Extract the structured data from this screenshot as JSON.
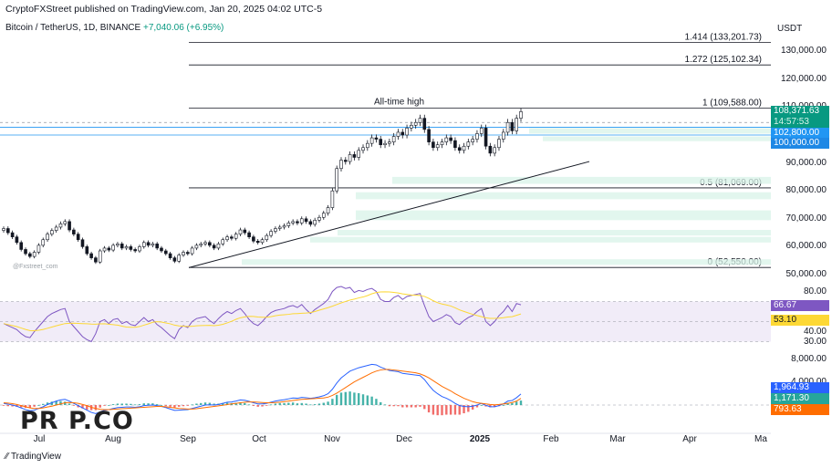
{
  "header": {
    "publisher": "CryptoFXStreet published on TradingView.com, Jan 20, 2025 04:02 UTC-5",
    "symbol": "Bitcoin / TetherUS, 1D, BINANCE",
    "change": "+7,040.06 (+6.95%)"
  },
  "currency_label": "USDT",
  "watermark": "PR P.CO",
  "small_watermark": "@Fxstreet_com",
  "tv_logo": "TradingView",
  "badges": {
    "last_price": "108,371.63",
    "countdown": "14:57:53",
    "level_a": "102,800.00",
    "level_b": "100,000.00",
    "rsi": "66.67",
    "rsi_ma": "53.10",
    "macd_scale": "1,964.93",
    "macd_signal": "1,171.30",
    "macd_hist": "793.63"
  },
  "colors": {
    "up": "#089981",
    "down": "#f23645",
    "fib_line": "#131722",
    "level_line": "#2196f3",
    "rsi_line": "#7e57c2",
    "rsi_ma": "#fdd835",
    "macd_line": "#2962ff",
    "signal_line": "#ff6d00",
    "zone": "#d8f3e8"
  },
  "chart_data": [
    {
      "type": "candlestick",
      "title": "Bitcoin / TetherUS, 1D, BINANCE",
      "y_axis_ticks": [
        "130,000.00",
        "120,000.00",
        "110,000.00",
        "100,000.00",
        "90,000.00",
        "80,000.00",
        "70,000.00",
        "60,000.00",
        "50,000.00"
      ],
      "ylim": [
        48500,
        136000
      ],
      "x_ticks": [
        "Jul",
        "Aug",
        "Sep",
        "Oct",
        "Nov",
        "Dec",
        "2025",
        "Feb",
        "Mar",
        "Apr",
        "Ma"
      ],
      "closes": [
        66500,
        65000,
        63500,
        61500,
        59000,
        57500,
        56500,
        58000,
        60500,
        62500,
        64500,
        65800,
        67000,
        68200,
        69000,
        66000,
        64500,
        62500,
        60000,
        57500,
        56000,
        54500,
        58500,
        59500,
        58800,
        60500,
        61000,
        59500,
        60000,
        59000,
        58500,
        60000,
        61500,
        60500,
        61000,
        59500,
        58500,
        57500,
        56000,
        54800,
        57000,
        58000,
        57500,
        59500,
        60500,
        61000,
        61500,
        60500,
        59500,
        61000,
        62500,
        63500,
        63000,
        64500,
        66000,
        65000,
        63500,
        62000,
        61500,
        62500,
        64000,
        65500,
        66500,
        67000,
        67500,
        68500,
        69000,
        68500,
        70000,
        69000,
        68000,
        69500,
        70500,
        72000,
        74000,
        80000,
        88000,
        91000,
        90500,
        93000,
        92000,
        94500,
        95500,
        97000,
        99000,
        98500,
        96500,
        97000,
        97500,
        99500,
        101000,
        100000,
        102500,
        103500,
        104500,
        106000,
        102000,
        97500,
        95500,
        96500,
        97500,
        99000,
        98000,
        95500,
        94500,
        96000,
        97500,
        98500,
        100500,
        102500,
        96000,
        93500,
        95500,
        98500,
        101000,
        104500,
        101500,
        106000,
        108371
      ],
      "fib_levels": [
        {
          "label": "1.414 (133,201.73)",
          "value": 133201.73
        },
        {
          "label": "1.272 (125,102.34)",
          "value": 125102.34
        },
        {
          "label": "1 (109,588.00)",
          "value": 109588
        },
        {
          "label": "0.5 (81,069.00)",
          "value": 81069
        },
        {
          "label": "0 (52,550.00)",
          "value": 52550
        }
      ],
      "annotations": [
        "All-time high"
      ],
      "horizontal_levels": [
        102800,
        100000
      ],
      "trendline": {
        "from": [
          52500,
          "Sep"
        ],
        "to": [
          90500,
          "Feb"
        ]
      }
    },
    {
      "type": "line",
      "title": "RSI",
      "y_axis_ticks": [
        "80.00",
        "40.00",
        "30.00"
      ],
      "ylim": [
        25,
        85
      ],
      "overbought": 70,
      "oversold": 30,
      "series": [
        {
          "values": [
            48,
            46,
            44,
            42,
            38,
            35,
            34,
            40,
            45,
            50,
            55,
            58,
            60,
            62,
            63,
            50,
            45,
            40,
            35,
            32,
            30,
            38,
            50,
            52,
            48,
            52,
            53,
            48,
            50,
            47,
            46,
            50,
            54,
            50,
            52,
            47,
            44,
            40,
            36,
            33,
            42,
            46,
            44,
            50,
            53,
            54,
            55,
            51,
            48,
            53,
            57,
            60,
            58,
            61,
            63,
            58,
            52,
            48,
            46,
            50,
            55,
            59,
            61,
            62,
            63,
            65,
            66,
            64,
            67,
            62,
            58,
            62,
            65,
            68,
            72,
            80,
            84,
            85,
            83,
            84,
            79,
            81,
            80,
            82,
            83,
            80,
            72,
            70,
            70,
            74,
            76,
            72,
            75,
            76,
            77,
            78,
            66,
            55,
            50,
            52,
            54,
            57,
            55,
            49,
            47,
            51,
            54,
            56,
            60,
            63,
            50,
            46,
            50,
            56,
            60,
            66,
            60,
            68,
            66.67
          ]
        }
      ]
    },
    {
      "type": "line",
      "title": "MACD",
      "y_axis_ticks": [
        "8,000.00",
        "4,000.00"
      ],
      "series": [
        {
          "values": [
            300,
            150,
            0,
            -200,
            -500,
            -800,
            -1000,
            -900,
            -600,
            -300,
            100,
            400,
            700,
            900,
            1000,
            700,
            300,
            -100,
            -500,
            -900,
            -1300,
            -1500,
            -1200,
            -900,
            -800,
            -600,
            -450,
            -400,
            -350,
            -350,
            -400,
            -300,
            -100,
            -50,
            0,
            -100,
            -250,
            -450,
            -700,
            -950,
            -900,
            -850,
            -800,
            -600,
            -400,
            -200,
            0,
            50,
            0,
            100,
            300,
            500,
            550,
            700,
            900,
            850,
            650,
            400,
            200,
            200,
            300,
            500,
            700,
            850,
            950,
            1100,
            1250,
            1200,
            1350,
            1300,
            1200,
            1300,
            1450,
            1650,
            2000,
            2800,
            3900,
            4800,
            5400,
            6000,
            6300,
            6600,
            6800,
            7000,
            7200,
            7100,
            6700,
            6400,
            6100,
            6000,
            5900,
            5600,
            5500,
            5400,
            5300,
            5200,
            4500,
            3500,
            2600,
            2000,
            1500,
            1200,
            800,
            300,
            -100,
            -250,
            -300,
            -200,
            0,
            300,
            -50,
            -300,
            -300,
            -100,
            200,
            700,
            800,
            1300,
            1964.93
          ]
        },
        {
          "values": [
            400,
            350,
            250,
            100,
            -100,
            -300,
            -500,
            -600,
            -600,
            -500,
            -350,
            -200,
            0,
            200,
            400,
            450,
            400,
            300,
            100,
            -100,
            -400,
            -600,
            -750,
            -800,
            -800,
            -750,
            -700,
            -650,
            -600,
            -550,
            -500,
            -450,
            -400,
            -350,
            -300,
            -250,
            -250,
            -300,
            -400,
            -500,
            -600,
            -650,
            -700,
            -700,
            -650,
            -550,
            -450,
            -350,
            -250,
            -150,
            -50,
            100,
            200,
            300,
            400,
            500,
            550,
            550,
            500,
            450,
            400,
            400,
            450,
            500,
            600,
            700,
            800,
            900,
            1000,
            1050,
            1100,
            1150,
            1200,
            1250,
            1400,
            1700,
            2100,
            2600,
            3100,
            3600,
            4100,
            4500,
            4900,
            5300,
            5700,
            6000,
            6200,
            6300,
            6300,
            6200,
            6100,
            6000,
            5900,
            5800,
            5700,
            5500,
            5200,
            4800,
            4300,
            3800,
            3300,
            2900,
            2500,
            2000,
            1600,
            1200,
            900,
            600,
            400,
            300,
            200,
            100,
            50,
            100,
            200,
            300,
            450,
            700,
            1171.3
          ]
        },
        {
          "values": [
            -100,
            -200,
            -250,
            -300,
            -400,
            -500,
            -500,
            -300,
            0,
            200,
            450,
            600,
            700,
            700,
            600,
            250,
            -100,
            -400,
            -600,
            -800,
            -900,
            -900,
            -450,
            -100,
            0,
            150,
            250,
            250,
            250,
            200,
            100,
            150,
            300,
            300,
            300,
            150,
            0,
            -150,
            -300,
            -450,
            -300,
            -200,
            -100,
            100,
            250,
            350,
            450,
            400,
            250,
            250,
            350,
            400,
            350,
            400,
            500,
            350,
            100,
            -150,
            -300,
            -250,
            -100,
            100,
            250,
            350,
            350,
            400,
            450,
            300,
            350,
            250,
            100,
            150,
            250,
            400,
            600,
            1100,
            1800,
            2200,
            2300,
            2400,
            2200,
            2100,
            1900,
            1700,
            1500,
            1100,
            500,
            100,
            -200,
            -200,
            -200,
            -400,
            -400,
            -400,
            -400,
            -300,
            -700,
            -1300,
            -1700,
            -1800,
            -1800,
            -1700,
            -1700,
            -1700,
            -1700,
            -1450,
            -1200,
            -800,
            -400,
            0,
            -250,
            -400,
            -350,
            -200,
            0,
            400,
            350,
            600,
            793.63
          ]
        }
      ]
    }
  ]
}
